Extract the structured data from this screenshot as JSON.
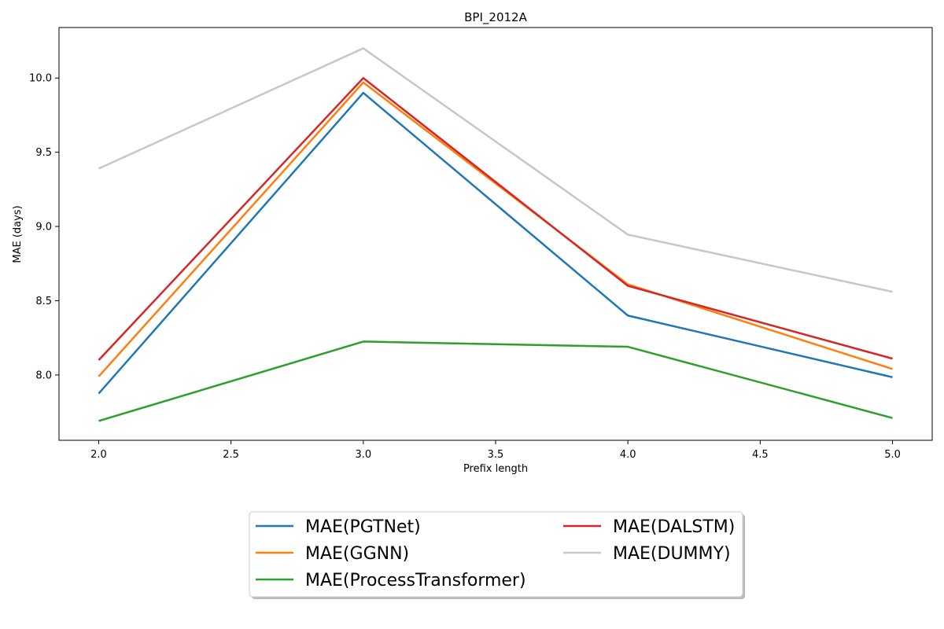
{
  "chart_data": {
    "type": "line",
    "title": "BPI_2012A",
    "xlabel": "Prefix length",
    "ylabel": "MAE (days)",
    "x": [
      2.0,
      3.0,
      4.0,
      5.0
    ],
    "xlim": [
      1.85,
      5.15
    ],
    "ylim": [
      7.56,
      10.34
    ],
    "xticks": [
      2.0,
      2.5,
      3.0,
      3.5,
      4.0,
      4.5,
      5.0
    ],
    "xtick_labels": [
      "2.0",
      "2.5",
      "3.0",
      "3.5",
      "4.0",
      "4.5",
      "5.0"
    ],
    "yticks": [
      8.0,
      8.5,
      9.0,
      9.5,
      10.0
    ],
    "ytick_labels": [
      "8.0",
      "8.5",
      "9.0",
      "9.5",
      "10.0"
    ],
    "grid": false,
    "legend_position": "bottom-center, below plot, 2 columns",
    "series": [
      {
        "name": "MAE(PGTNet)",
        "color": "#1f77b4",
        "values": [
          7.875,
          9.9,
          8.4,
          7.985
        ]
      },
      {
        "name": "MAE(GGNN)",
        "color": "#ff7f0e",
        "values": [
          7.99,
          9.97,
          8.61,
          8.04
        ]
      },
      {
        "name": "MAE(ProcessTransformer)",
        "color": "#2ca02c",
        "values": [
          7.69,
          8.225,
          8.19,
          7.71
        ]
      },
      {
        "name": "MAE(DALSTM)",
        "color": "#d62728",
        "values": [
          8.1,
          10.0,
          8.6,
          8.11
        ]
      },
      {
        "name": "MAE(DUMMY)",
        "color": "#c7c7c7",
        "values": [
          9.39,
          10.2,
          8.945,
          8.56
        ]
      }
    ]
  }
}
